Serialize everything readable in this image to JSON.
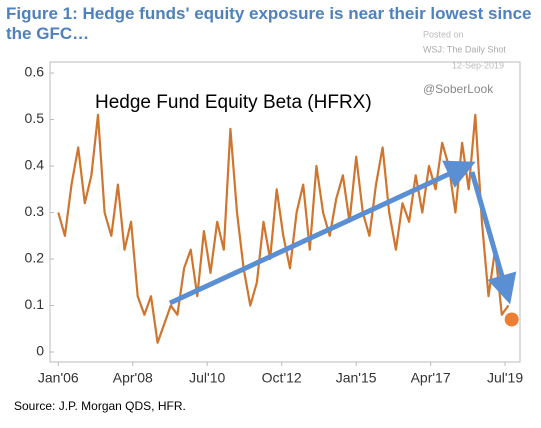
{
  "chart_data": {
    "type": "line",
    "title": "Figure 1: Hedge funds' equity exposure is near their lowest since the GFC…",
    "watermark": [
      "Posted on",
      "WSJ: The Daily Shot",
      "12-Sep-2019"
    ],
    "handle": "@SoberLook",
    "annotation": "Hedge Fund Equity Beta (HFRX)",
    "source": "Source: J.P. Morgan QDS, HFR.",
    "x": [
      2006.0,
      2006.2,
      2006.4,
      2006.6,
      2006.8,
      2007.0,
      2007.2,
      2007.4,
      2007.6,
      2007.8,
      2008.0,
      2008.2,
      2008.4,
      2008.6,
      2008.8,
      2009.0,
      2009.2,
      2009.4,
      2009.6,
      2009.8,
      2010.0,
      2010.2,
      2010.4,
      2010.6,
      2010.8,
      2011.0,
      2011.2,
      2011.4,
      2011.6,
      2011.8,
      2012.0,
      2012.2,
      2012.4,
      2012.6,
      2012.8,
      2013.0,
      2013.2,
      2013.4,
      2013.6,
      2013.8,
      2014.0,
      2014.2,
      2014.4,
      2014.6,
      2014.8,
      2015.0,
      2015.2,
      2015.4,
      2015.6,
      2015.8,
      2016.0,
      2016.2,
      2016.4,
      2016.6,
      2016.8,
      2017.0,
      2017.2,
      2017.4,
      2017.6,
      2017.8,
      2018.0,
      2018.2,
      2018.4,
      2018.6,
      2018.8,
      2019.0,
      2019.2,
      2019.4,
      2019.6
    ],
    "series": [
      {
        "color": "#d0752d",
        "values": [
          0.3,
          0.25,
          0.36,
          0.44,
          0.32,
          0.38,
          0.51,
          0.3,
          0.25,
          0.36,
          0.22,
          0.28,
          0.12,
          0.08,
          0.12,
          0.02,
          0.06,
          0.1,
          0.08,
          0.18,
          0.22,
          0.12,
          0.26,
          0.17,
          0.28,
          0.22,
          0.48,
          0.3,
          0.18,
          0.1,
          0.15,
          0.28,
          0.2,
          0.35,
          0.25,
          0.18,
          0.3,
          0.36,
          0.22,
          0.4,
          0.3,
          0.25,
          0.33,
          0.38,
          0.28,
          0.42,
          0.3,
          0.25,
          0.36,
          0.44,
          0.3,
          0.22,
          0.32,
          0.28,
          0.38,
          0.3,
          0.4,
          0.35,
          0.45,
          0.4,
          0.3,
          0.45,
          0.35,
          0.51,
          0.28,
          0.12,
          0.22,
          0.08,
          0.1
        ]
      }
    ],
    "last_point": {
      "x": 2019.7,
      "y": 0.07,
      "color": "#ed7d31"
    },
    "xlim": [
      2005.9,
      2019.8
    ],
    "xticks": [
      {
        "value": 2006.0,
        "label": "Jan'06"
      },
      {
        "value": 2008.25,
        "label": "Apr'08"
      },
      {
        "value": 2010.5,
        "label": "Jul'10"
      },
      {
        "value": 2012.75,
        "label": "Oct'12"
      },
      {
        "value": 2015.0,
        "label": "Jan'15"
      },
      {
        "value": 2017.25,
        "label": "Apr'17"
      },
      {
        "value": 2019.5,
        "label": "Jul'19"
      }
    ],
    "ylim": [
      0,
      0.6
    ],
    "yticks": [
      0,
      0.1,
      0.2,
      0.3,
      0.4,
      0.5,
      0.6
    ]
  }
}
